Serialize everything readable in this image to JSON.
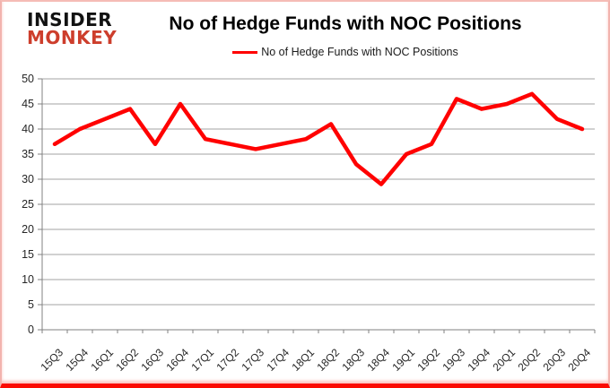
{
  "logo": {
    "line1": "INSIDER",
    "line2": "MONKEY"
  },
  "chart_data": {
    "type": "line",
    "title": "No of Hedge Funds with NOC Positions",
    "legend": "No of Hedge Funds with NOC Positions",
    "legend_position": "top",
    "categories": [
      "15Q3",
      "15Q4",
      "16Q1",
      "16Q2",
      "16Q3",
      "16Q4",
      "17Q1",
      "17Q2",
      "17Q3",
      "17Q4",
      "18Q1",
      "18Q2",
      "18Q3",
      "18Q4",
      "19Q1",
      "19Q2",
      "19Q3",
      "19Q4",
      "20Q1",
      "20Q2",
      "20Q3",
      "20Q4"
    ],
    "values": [
      37,
      40,
      42,
      44,
      37,
      45,
      38,
      37,
      36,
      37,
      38,
      41,
      33,
      29,
      35,
      37,
      46,
      44,
      45,
      47,
      42,
      40
    ],
    "xlabel": "",
    "ylabel": "",
    "ylim": [
      0,
      50
    ],
    "ytick_step": 5,
    "grid": true,
    "line_color": "#ff0000",
    "grid_color": "#a3a3a3",
    "axis_color": "#808080",
    "text_color": "#262626"
  }
}
